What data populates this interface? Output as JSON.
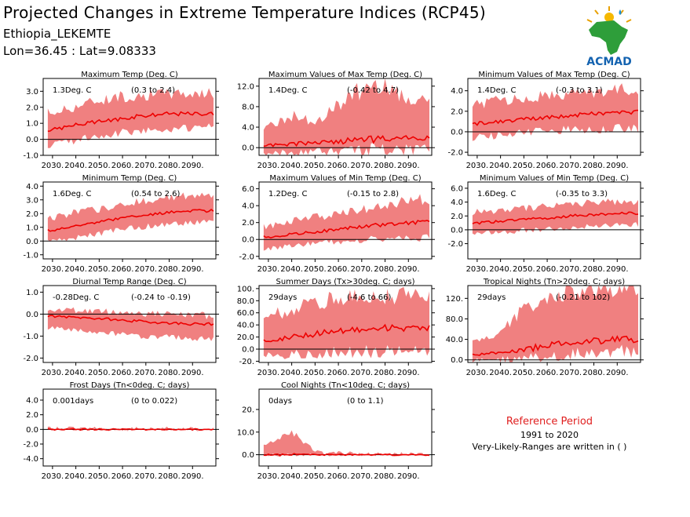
{
  "header": {
    "title": "Projected Changes in Extreme Temperature Indices (RCP45)",
    "station": "Ethiopia_LEKEMTE",
    "coords": "Lon=36.45 : Lat=9.08333"
  },
  "logo": {
    "text": "ACMAD",
    "icon": "africa-map-logo"
  },
  "reference": {
    "title": "Reference Period",
    "years": "1991 to 2020",
    "note": "Very-Likely-Ranges are written in ( )"
  },
  "colors": {
    "band": "#f08080",
    "line": "#ee0000",
    "zero": "#000000",
    "ref_text": "#e02020"
  },
  "chart_data": [
    {
      "id": "p1",
      "type": "area",
      "title": "Maximum Temp (Deg. C)",
      "change": "1.3Deg. C",
      "range": "(0.3 to 2.4)",
      "x": [
        2030,
        2040,
        2050,
        2060,
        2070,
        2080,
        2090
      ],
      "xticks": [
        "2030.",
        "2040.",
        "2050.",
        "2060.",
        "2070.",
        "2080.",
        "2090."
      ],
      "ylim": [
        -1,
        3.8
      ],
      "yticks": [
        3,
        2,
        1,
        0,
        -1
      ],
      "yticklabels": [
        "3.0",
        "2.0",
        "1.0",
        "0.0",
        "-1.0"
      ],
      "series": {
        "median": [
          0.6,
          0.9,
          1.1,
          1.3,
          1.5,
          1.6,
          1.6
        ],
        "low": [
          -0.3,
          0.0,
          0.3,
          0.5,
          0.6,
          0.7,
          0.8
        ],
        "high": [
          1.6,
          2.0,
          2.4,
          2.6,
          2.7,
          2.8,
          2.8
        ]
      }
    },
    {
      "id": "p2",
      "type": "area",
      "title": "Maximum Values of Max Temp (Deg. C)",
      "change": "1.4Deg. C",
      "range": "(-0.42 to 4.7)",
      "x": [
        2030,
        2040,
        2050,
        2060,
        2070,
        2080,
        2090
      ],
      "xticks": [
        "2030.",
        "2040.",
        "2050.",
        "2060.",
        "2070.",
        "2080.",
        "2090."
      ],
      "ylim": [
        -1.5,
        13.5
      ],
      "yticks": [
        12,
        8,
        4,
        0
      ],
      "yticklabels": [
        "12.0",
        "8.0",
        "4.0",
        "0.0"
      ],
      "series": {
        "median": [
          0.4,
          0.7,
          1.0,
          1.2,
          1.5,
          1.7,
          1.8
        ],
        "low": [
          -1.0,
          -0.8,
          -0.6,
          -0.4,
          -0.3,
          -0.2,
          -0.2
        ],
        "high": [
          4.0,
          6.0,
          5.0,
          8.0,
          11.0,
          12.0,
          9.0
        ]
      }
    },
    {
      "id": "p3",
      "type": "area",
      "title": "Minimum Values of Max Temp (Deg. C)",
      "change": "1.4Deg. C",
      "range": "(-0.3 to 3.1)",
      "x": [
        2030,
        2040,
        2050,
        2060,
        2070,
        2080,
        2090
      ],
      "xticks": [
        "2030.",
        "2040.",
        "2050.",
        "2060.",
        "2070.",
        "2080.",
        "2090."
      ],
      "ylim": [
        -2.3,
        5.2
      ],
      "yticks": [
        4,
        2,
        0,
        -2
      ],
      "yticklabels": [
        "4.0",
        "2.0",
        "0.0",
        "-2.0"
      ],
      "series": {
        "median": [
          0.8,
          1.0,
          1.2,
          1.4,
          1.6,
          1.8,
          1.9
        ],
        "low": [
          -0.5,
          -0.3,
          0.0,
          0.2,
          0.3,
          0.3,
          0.4
        ],
        "high": [
          2.5,
          3.0,
          3.2,
          3.4,
          3.6,
          3.8,
          4.0
        ]
      }
    },
    {
      "id": "p4",
      "type": "area",
      "title": "Minimum Temp (Deg. C)",
      "change": "1.6Deg. C",
      "range": "(0.54 to 2.6)",
      "x": [
        2030,
        2040,
        2050,
        2060,
        2070,
        2080,
        2090
      ],
      "xticks": [
        "2030.",
        "2040.",
        "2050.",
        "2060.",
        "2070.",
        "2080.",
        "2090."
      ],
      "ylim": [
        -1.3,
        4.3
      ],
      "yticks": [
        4,
        3,
        2,
        1,
        0,
        -1
      ],
      "yticklabels": [
        "4.0",
        "3.0",
        "2.0",
        "1.0",
        "0.0",
        "-1.0"
      ],
      "series": {
        "median": [
          0.8,
          1.1,
          1.4,
          1.7,
          1.9,
          2.1,
          2.2
        ],
        "low": [
          0.1,
          0.3,
          0.6,
          0.9,
          1.1,
          1.3,
          1.4
        ],
        "high": [
          1.6,
          2.0,
          2.3,
          2.6,
          2.9,
          3.1,
          3.2
        ]
      }
    },
    {
      "id": "p5",
      "type": "area",
      "title": "Maximum Values of Min Temp (Deg. C)",
      "change": "1.2Deg. C",
      "range": "(-0.15 to 2.8)",
      "x": [
        2030,
        2040,
        2050,
        2060,
        2070,
        2080,
        2090
      ],
      "xticks": [
        "2030.",
        "2040.",
        "2050.",
        "2060.",
        "2070.",
        "2080.",
        "2090."
      ],
      "ylim": [
        -2.3,
        6.8
      ],
      "yticks": [
        6,
        4,
        2,
        0,
        -2
      ],
      "yticklabels": [
        "6.0",
        "4.0",
        "2.0",
        "0.0",
        "-2.0"
      ],
      "series": {
        "median": [
          0.3,
          0.6,
          0.9,
          1.2,
          1.5,
          1.8,
          2.0
        ],
        "low": [
          -1.0,
          -0.7,
          -0.4,
          -0.2,
          0.0,
          0.2,
          0.3
        ],
        "high": [
          1.5,
          2.0,
          2.5,
          3.0,
          3.5,
          4.0,
          4.5
        ]
      }
    },
    {
      "id": "p6",
      "type": "area",
      "title": "Minimum Values of Min Temp (Deg. C)",
      "change": "1.6Deg. C",
      "range": "(-0.35 to 3.3)",
      "x": [
        2030,
        2040,
        2050,
        2060,
        2070,
        2080,
        2090
      ],
      "xticks": [
        "2030.",
        "2040.",
        "2050.",
        "2060.",
        "2070.",
        "2080.",
        "2090."
      ],
      "ylim": [
        -4.2,
        6.9
      ],
      "yticks": [
        6,
        4,
        2,
        0,
        -2
      ],
      "yticklabels": [
        "6.0",
        "4.0",
        "2.0",
        "0.0",
        "-2.0"
      ],
      "series": {
        "median": [
          1.0,
          1.2,
          1.5,
          1.7,
          2.0,
          2.2,
          2.4
        ],
        "low": [
          -0.5,
          -0.3,
          0.0,
          0.2,
          0.4,
          0.6,
          0.8
        ],
        "high": [
          2.5,
          2.8,
          3.0,
          3.3,
          3.6,
          3.8,
          4.0
        ]
      }
    },
    {
      "id": "p7",
      "type": "area",
      "title": "Diurnal Temp Range (Deg. C)",
      "change": "-0.28Deg. C",
      "range": "(-0.24 to -0.19)",
      "x": [
        2030,
        2040,
        2050,
        2060,
        2070,
        2080,
        2090
      ],
      "xticks": [
        "2030.",
        "2040.",
        "2050.",
        "2060.",
        "2070.",
        "2080.",
        "2090."
      ],
      "ylim": [
        -2.2,
        1.3
      ],
      "yticks": [
        1,
        0,
        -1,
        -2
      ],
      "yticklabels": [
        "1.0",
        "0.0",
        "-1.0",
        "-2.0"
      ],
      "series": {
        "median": [
          -0.1,
          -0.15,
          -0.2,
          -0.28,
          -0.35,
          -0.4,
          -0.45
        ],
        "low": [
          -0.6,
          -0.7,
          -0.8,
          -0.9,
          -1.0,
          -1.0,
          -1.1
        ],
        "high": [
          0.2,
          0.15,
          0.1,
          0.05,
          0.0,
          -0.05,
          -0.1
        ]
      }
    },
    {
      "id": "p8",
      "type": "area",
      "title": "Summer Days (Tx>30deg. C; days)",
      "change": "29days",
      "range": "(-4.6 to 66)",
      "x": [
        2030,
        2040,
        2050,
        2060,
        2070,
        2080,
        2090
      ],
      "xticks": [
        "2030.",
        "2040.",
        "2050.",
        "2060.",
        "2070.",
        "2080.",
        "2090."
      ],
      "ylim": [
        -22,
        105
      ],
      "yticks": [
        100,
        80,
        60,
        40,
        20,
        0,
        -20
      ],
      "yticklabels": [
        "100.",
        "80.0",
        "60.0",
        "40.0",
        "20.0",
        "0.0",
        "-20."
      ],
      "series": {
        "median": [
          15,
          20,
          25,
          30,
          33,
          35,
          35
        ],
        "low": [
          -10,
          -8,
          -5,
          -3,
          -2,
          -2,
          -2
        ],
        "high": [
          50,
          65,
          75,
          80,
          85,
          85,
          85
        ]
      }
    },
    {
      "id": "p9",
      "type": "area",
      "title": "Tropical Nights (Tn>20deg. C; days)",
      "change": "29days",
      "range": "(-0.21 to 102)",
      "x": [
        2030,
        2040,
        2050,
        2060,
        2070,
        2080,
        2090
      ],
      "xticks": [
        "2030.",
        "2040.",
        "2050.",
        "2060.",
        "2070.",
        "2080.",
        "2090."
      ],
      "ylim": [
        -5,
        145
      ],
      "yticks": [
        120,
        80,
        40,
        0
      ],
      "yticklabels": [
        "120.",
        "80.0",
        "40.0",
        "0.0"
      ],
      "series": {
        "median": [
          10,
          15,
          20,
          28,
          33,
          37,
          40
        ],
        "low": [
          0,
          2,
          5,
          10,
          15,
          18,
          20
        ],
        "high": [
          35,
          50,
          100,
          120,
          130,
          135,
          135
        ]
      }
    },
    {
      "id": "p10",
      "type": "area",
      "title": "Frost Days (Tn<0deg. C; days)",
      "change": "0.001days",
      "range": "(0 to 0.022)",
      "x": [
        2030,
        2040,
        2050,
        2060,
        2070,
        2080,
        2090
      ],
      "xticks": [
        "2030.",
        "2040.",
        "2050.",
        "2060.",
        "2070.",
        "2080.",
        "2090."
      ],
      "ylim": [
        -5,
        5.5
      ],
      "yticks": [
        4,
        2,
        0,
        -2,
        -4
      ],
      "yticklabels": [
        "4.0",
        "2.0",
        "0.0",
        "-2.0",
        "-4.0"
      ],
      "series": {
        "median": [
          0,
          0,
          0,
          0,
          0,
          0,
          0
        ],
        "low": [
          0,
          0,
          0,
          0,
          0,
          0,
          0
        ],
        "high": [
          0.05,
          0.05,
          0.02,
          0.02,
          0.02,
          0.02,
          0.02
        ]
      }
    },
    {
      "id": "p11",
      "type": "area",
      "title": "Cool Nights (Tn<10deg. C; days)",
      "change": "0days",
      "range": "(0 to 1.1)",
      "x": [
        2030,
        2040,
        2050,
        2060,
        2070,
        2080,
        2090
      ],
      "xticks": [
        "2030.",
        "2040.",
        "2050.",
        "2060.",
        "2070.",
        "2080.",
        "2090."
      ],
      "ylim": [
        -5,
        29
      ],
      "yticks": [
        20,
        10,
        0
      ],
      "yticklabels": [
        "20.",
        "10.0",
        "0.0"
      ],
      "series": {
        "median": [
          0,
          0,
          0,
          0,
          0,
          0,
          0
        ],
        "low": [
          0,
          0,
          0,
          0,
          0,
          0,
          0
        ],
        "high": [
          5,
          10,
          1,
          0.5,
          0,
          0,
          0
        ]
      }
    }
  ]
}
